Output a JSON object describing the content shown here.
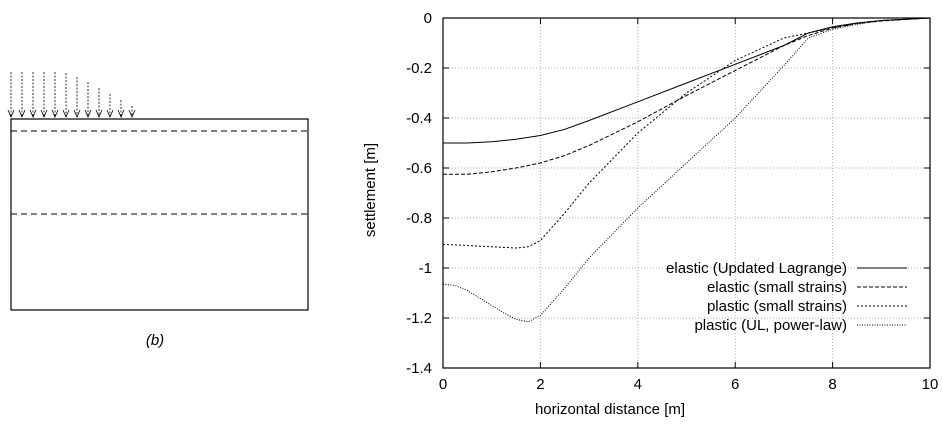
{
  "figure": {
    "caption": "(b)"
  },
  "chart_data": {
    "type": "line",
    "xlabel": "horizontal distance [m]",
    "ylabel": "settlement [m]",
    "xlim": [
      0,
      10
    ],
    "ylim": [
      -1.4,
      0
    ],
    "xticks": [
      "0",
      "2",
      "4",
      "6",
      "8",
      "10"
    ],
    "yticks": [
      "0",
      "-0.2",
      "-0.4",
      "-0.6",
      "-0.8",
      "-1",
      "-1.2",
      "-1.4"
    ],
    "grid": true,
    "legend_position": "bottom-right",
    "series": [
      {
        "name": "elastic (Updated Lagrange)",
        "dash": "solid",
        "x": [
          0,
          0.5,
          1.0,
          1.5,
          2.0,
          2.5,
          3.0,
          4.0,
          5.0,
          6.0,
          7.0,
          7.5,
          8.0,
          8.5,
          9.0,
          10.0
        ],
        "y": [
          -0.5,
          -0.5,
          -0.495,
          -0.485,
          -0.47,
          -0.445,
          -0.41,
          -0.335,
          -0.26,
          -0.185,
          -0.11,
          -0.06,
          -0.035,
          -0.02,
          -0.01,
          0.0
        ]
      },
      {
        "name": "elastic (small strains)",
        "dash": "dashed",
        "x": [
          0,
          0.5,
          1.0,
          1.5,
          2.0,
          2.5,
          3.0,
          4.0,
          5.0,
          6.0,
          7.0,
          7.5,
          8.0,
          8.5,
          9.0,
          10.0
        ],
        "y": [
          -0.625,
          -0.625,
          -0.615,
          -0.6,
          -0.58,
          -0.55,
          -0.51,
          -0.415,
          -0.31,
          -0.21,
          -0.11,
          -0.07,
          -0.04,
          -0.022,
          -0.012,
          0.0
        ]
      },
      {
        "name": "plastic (small strains)",
        "dash": "dotted",
        "x": [
          0,
          0.5,
          1.0,
          1.5,
          1.75,
          2.0,
          2.5,
          3.0,
          4.0,
          5.0,
          6.0,
          7.0,
          7.5,
          8.0,
          8.5,
          9.0,
          10.0
        ],
        "y": [
          -0.905,
          -0.91,
          -0.915,
          -0.92,
          -0.915,
          -0.89,
          -0.78,
          -0.66,
          -0.46,
          -0.3,
          -0.17,
          -0.08,
          -0.06,
          -0.04,
          -0.022,
          -0.01,
          0.0
        ]
      },
      {
        "name": "plastic (UL, power-law)",
        "dash": "finedot",
        "x": [
          0,
          0.25,
          0.5,
          0.75,
          1.0,
          1.25,
          1.5,
          1.75,
          2.0,
          2.5,
          3.0,
          4.0,
          5.0,
          6.0,
          7.0,
          7.5,
          8.0,
          8.5,
          9.0,
          10.0
        ],
        "y": [
          -1.065,
          -1.07,
          -1.09,
          -1.12,
          -1.15,
          -1.18,
          -1.205,
          -1.215,
          -1.19,
          -1.08,
          -0.96,
          -0.76,
          -0.58,
          -0.4,
          -0.19,
          -0.08,
          -0.045,
          -0.025,
          -0.01,
          0.0
        ]
      }
    ]
  }
}
